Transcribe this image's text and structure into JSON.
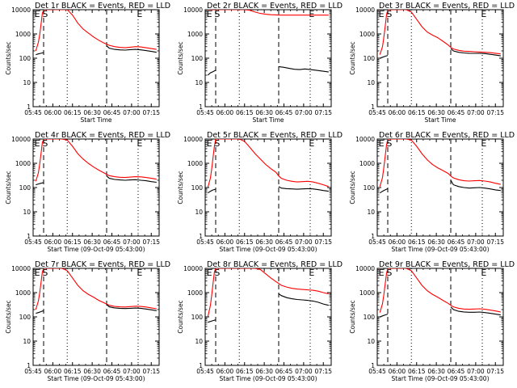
{
  "chart_data": {
    "type": "line",
    "layout": {
      "rows": 3,
      "cols": 3
    },
    "x_range": [
      0,
      96
    ],
    "x_tick_values": [
      0,
      15,
      30,
      45,
      60,
      75,
      90
    ],
    "x_tick_labels": [
      "05:45",
      "06:00",
      "06:15",
      "06:30",
      "06:45",
      "07:00",
      "07:15"
    ],
    "xlabel_short": "Start Time",
    "xlabel_long": "Start Time (09-Oct-09 05:43:00)",
    "ylabel": "Counts/sec",
    "yscale": "log",
    "y_range": [
      1,
      10000
    ],
    "y_tick_values": [
      1,
      10,
      100,
      1000,
      10000
    ],
    "y_tick_labels": [
      "1",
      "10",
      "100",
      "1000",
      "10000"
    ],
    "interval_markers": {
      "dashed": [
        8,
        56
      ],
      "dotted": [
        26,
        80
      ],
      "letters": [
        "E",
        "S",
        "E"
      ]
    },
    "series_colors": {
      "events": "#000000",
      "lld": "#ff0000"
    },
    "panels": [
      {
        "title": "Det 1r BLACK = Events, RED = LLD",
        "series": [
          {
            "name": "Events",
            "x": [
              2,
              4,
              6,
              8,
              8.5,
              12,
              16,
              20,
              24,
              28,
              32,
              36,
              40,
              44,
              48,
              52,
              55.5,
              56,
              58,
              62,
              66,
              70,
              74,
              78,
              82,
              86,
              90,
              94
            ],
            "y": [
              140,
              150,
              160,
              170,
              null,
              null,
              null,
              null,
              null,
              null,
              null,
              null,
              null,
              null,
              null,
              null,
              null,
              320,
              260,
              230,
              220,
              215,
              225,
              230,
              220,
              205,
              190,
              175
            ]
          },
          {
            "name": "LLD",
            "x": [
              2,
              4,
              5,
              6,
              7,
              8,
              10,
              14,
              18,
              22,
              26,
              30,
              34,
              38,
              42,
              46,
              50,
              54,
              56,
              58,
              62,
              66,
              70,
              74,
              78,
              82,
              86,
              90,
              94
            ],
            "y": [
              200,
              450,
              900,
              2500,
              7000,
              10000,
              10000,
              10000,
              10000,
              10000,
              10000,
              6000,
              2800,
              1600,
              1100,
              750,
              550,
              420,
              380,
              340,
              300,
              280,
              270,
              285,
              300,
              290,
              270,
              250,
              230
            ]
          }
        ]
      },
      {
        "title": "Det 2r BLACK = Events, RED = LLD",
        "series": [
          {
            "name": "Events",
            "x": [
              2,
              4,
              6,
              8,
              8.5,
              55.5,
              56,
              60,
              64,
              68,
              72,
              76,
              80,
              84,
              88,
              92,
              94
            ],
            "y": [
              20,
              25,
              28,
              32,
              null,
              null,
              45,
              42,
              38,
              35,
              34,
              36,
              34,
              32,
              30,
              28,
              27
            ]
          },
          {
            "name": "LLD",
            "x": [
              2,
              4,
              6,
              8,
              10,
              14,
              18,
              22,
              26,
              30,
              34,
              38,
              42,
              46,
              50,
              54,
              56,
              60,
              64,
              68,
              72,
              76,
              80,
              84,
              88,
              92,
              94
            ],
            "y": [
              10000,
              10000,
              10000,
              10000,
              10000,
              10000,
              10000,
              10000,
              10000,
              10000,
              9500,
              8000,
              7000,
              6500,
              6200,
              6100,
              6000,
              6000,
              6000,
              6000,
              6000,
              6000,
              6000,
              6000,
              6000,
              6000,
              6000
            ]
          }
        ]
      },
      {
        "title": "Det 3r BLACK = Events, RED = LLD",
        "series": [
          {
            "name": "Events",
            "x": [
              2,
              4,
              6,
              8,
              8.5,
              55.5,
              56,
              58,
              62,
              66,
              70,
              74,
              78,
              82,
              86,
              90,
              94
            ],
            "y": [
              100,
              110,
              120,
              130,
              null,
              null,
              250,
              200,
              175,
              165,
              160,
              158,
              160,
              155,
              145,
              135,
              125
            ]
          },
          {
            "name": "LLD",
            "x": [
              2,
              4,
              5,
              6,
              7,
              8,
              10,
              14,
              18,
              22,
              26,
              30,
              34,
              38,
              42,
              46,
              50,
              54,
              56,
              58,
              62,
              66,
              70,
              74,
              78,
              82,
              86,
              90,
              94
            ],
            "y": [
              140,
              300,
              700,
              2000,
              6000,
              10000,
              10000,
              10000,
              10000,
              10000,
              8000,
              4000,
              2000,
              1200,
              900,
              700,
              500,
              350,
              280,
              240,
              210,
              195,
              190,
              185,
              180,
              175,
              170,
              160,
              150
            ]
          }
        ]
      },
      {
        "title": "Det 4r BLACK = Events, RED = LLD",
        "series": [
          {
            "name": "Events",
            "x": [
              2,
              4,
              6,
              8,
              8.5,
              55.5,
              56,
              58,
              62,
              66,
              70,
              74,
              78,
              82,
              86,
              90,
              94
            ],
            "y": [
              130,
              140,
              150,
              160,
              null,
              null,
              300,
              240,
              215,
              205,
              200,
              205,
              210,
              200,
              190,
              175,
              165
            ]
          },
          {
            "name": "LLD",
            "x": [
              2,
              4,
              5,
              6,
              7,
              8,
              10,
              14,
              18,
              22,
              26,
              30,
              34,
              38,
              42,
              46,
              50,
              54,
              56,
              58,
              62,
              66,
              70,
              74,
              78,
              82,
              86,
              90,
              94
            ],
            "y": [
              180,
              400,
              900,
              2500,
              7000,
              10000,
              10000,
              10000,
              10000,
              10000,
              9000,
              5000,
              2500,
              1500,
              1000,
              700,
              520,
              400,
              350,
              310,
              280,
              265,
              260,
              270,
              280,
              275,
              260,
              240,
              220
            ]
          }
        ]
      },
      {
        "title": "Det 5r BLACK = Events, RED = LLD",
        "series": [
          {
            "name": "Events",
            "x": [
              2,
              4,
              6,
              8,
              8.5,
              55.5,
              56,
              58,
              62,
              66,
              70,
              74,
              78,
              82,
              86,
              90,
              94
            ],
            "y": [
              60,
              70,
              80,
              85,
              null,
              null,
              110,
              95,
              90,
              88,
              85,
              88,
              90,
              88,
              82,
              75,
              70
            ]
          },
          {
            "name": "LLD",
            "x": [
              2,
              4,
              5,
              6,
              7,
              8,
              10,
              14,
              18,
              22,
              26,
              30,
              34,
              38,
              42,
              46,
              50,
              54,
              56,
              58,
              62,
              66,
              70,
              74,
              78,
              82,
              86,
              90,
              94
            ],
            "y": [
              100,
              250,
              600,
              1800,
              5000,
              10000,
              10000,
              10000,
              10000,
              10000,
              10000,
              8000,
              4500,
              2500,
              1500,
              900,
              600,
              420,
              300,
              240,
              200,
              180,
              170,
              175,
              180,
              170,
              150,
              130,
              110
            ]
          }
        ]
      },
      {
        "title": "Det 6r BLACK = Events, RED = LLD",
        "series": [
          {
            "name": "Events",
            "x": [
              2,
              4,
              6,
              8,
              8.5,
              55.5,
              56,
              58,
              62,
              66,
              70,
              74,
              78,
              82,
              86,
              90,
              94
            ],
            "y": [
              60,
              70,
              80,
              90,
              null,
              null,
              200,
              130,
              110,
              100,
              95,
              98,
              100,
              95,
              88,
              80,
              75
            ]
          },
          {
            "name": "LLD",
            "x": [
              2,
              4,
              5,
              6,
              7,
              8,
              10,
              14,
              18,
              22,
              26,
              30,
              34,
              38,
              42,
              46,
              50,
              54,
              56,
              58,
              62,
              66,
              70,
              74,
              78,
              82,
              86,
              90,
              94
            ],
            "y": [
              110,
              260,
              650,
              1900,
              5500,
              10000,
              10000,
              10000,
              10000,
              10000,
              9000,
              5000,
              2500,
              1400,
              900,
              650,
              500,
              380,
              300,
              250,
              210,
              190,
              185,
              190,
              195,
              185,
              170,
              150,
              135
            ]
          }
        ]
      },
      {
        "title": "Det 7r BLACK = Events, RED = LLD",
        "series": [
          {
            "name": "Events",
            "x": [
              2,
              4,
              6,
              8,
              8.5,
              55.5,
              56,
              58,
              62,
              66,
              70,
              74,
              78,
              82,
              86,
              90,
              94
            ],
            "y": [
              140,
              150,
              165,
              180,
              null,
              null,
              320,
              260,
              235,
              225,
              220,
              225,
              230,
              225,
              210,
              195,
              180
            ]
          },
          {
            "name": "LLD",
            "x": [
              2,
              4,
              5,
              6,
              7,
              8,
              10,
              14,
              18,
              22,
              26,
              30,
              34,
              38,
              42,
              46,
              50,
              54,
              56,
              58,
              62,
              66,
              70,
              74,
              78,
              82,
              86,
              90,
              94
            ],
            "y": [
              200,
              450,
              950,
              2600,
              7000,
              10000,
              10000,
              10000,
              10000,
              10000,
              8000,
              4000,
              2000,
              1200,
              850,
              650,
              480,
              380,
              340,
              300,
              270,
              260,
              255,
              265,
              275,
              270,
              255,
              235,
              215
            ]
          }
        ]
      },
      {
        "title": "Det 8r BLACK = Events, RED = LLD",
        "series": [
          {
            "name": "Events",
            "x": [
              2,
              4,
              6,
              8,
              8.5,
              55.5,
              56,
              58,
              62,
              66,
              70,
              74,
              78,
              82,
              86,
              90,
              94
            ],
            "y": [
              60,
              65,
              70,
              75,
              null,
              null,
              900,
              750,
              620,
              560,
              520,
              500,
              480,
              450,
              400,
              340,
              300
            ]
          },
          {
            "name": "LLD",
            "x": [
              2,
              4,
              5,
              6,
              7,
              8,
              10,
              14,
              18,
              22,
              26,
              30,
              34,
              38,
              42,
              46,
              50,
              54,
              56,
              58,
              62,
              66,
              70,
              74,
              78,
              82,
              86,
              90,
              94
            ],
            "y": [
              100,
              300,
              800,
              2500,
              7000,
              10000,
              10000,
              10000,
              10000,
              10000,
              10000,
              10000,
              10000,
              10000,
              9000,
              6000,
              4000,
              2800,
              2400,
              2000,
              1700,
              1500,
              1400,
              1350,
              1300,
              1250,
              1150,
              1000,
              900
            ]
          }
        ]
      },
      {
        "title": "Det 9r BLACK = Events, RED = LLD",
        "series": [
          {
            "name": "Events",
            "x": [
              2,
              4,
              6,
              8,
              8.5,
              55.5,
              56,
              58,
              62,
              66,
              70,
              74,
              78,
              82,
              86,
              90,
              94
            ],
            "y": [
              100,
              110,
              120,
              130,
              null,
              null,
              260,
              200,
              170,
              160,
              155,
              155,
              158,
              150,
              140,
              130,
              120
            ]
          },
          {
            "name": "LLD",
            "x": [
              2,
              4,
              5,
              6,
              7,
              8,
              10,
              14,
              18,
              22,
              26,
              30,
              34,
              38,
              42,
              46,
              50,
              54,
              56,
              58,
              62,
              66,
              70,
              74,
              78,
              82,
              86,
              90,
              94
            ],
            "y": [
              150,
              350,
              800,
              2200,
              6000,
              10000,
              10000,
              10000,
              10000,
              10000,
              8000,
              4000,
              2000,
              1200,
              850,
              650,
              480,
              360,
              300,
              260,
              225,
              210,
              205,
              210,
              215,
              205,
              190,
              175,
              160
            ]
          }
        ]
      }
    ]
  }
}
